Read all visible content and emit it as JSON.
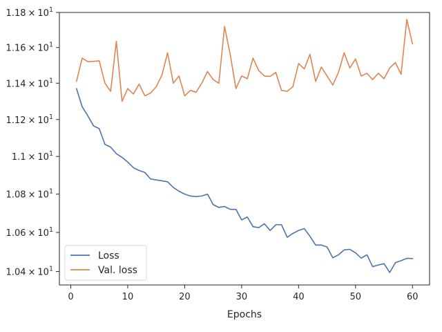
{
  "chart_data": {
    "type": "line",
    "title": "",
    "xlabel": "Epochs",
    "ylabel": "",
    "xlim": [
      -2,
      63
    ],
    "ylim": [
      10.332,
      11.8
    ],
    "x_ticks": [
      0,
      10,
      20,
      30,
      40,
      50,
      60
    ],
    "x_tick_labels": [
      "0",
      "10",
      "20",
      "30",
      "40",
      "50",
      "60"
    ],
    "y_ticks": [
      10.4,
      10.6,
      10.8,
      11.0,
      11.2,
      11.4,
      11.6,
      11.8
    ],
    "y_tick_labels": [
      {
        "mantissa": "1.04",
        "times": "×",
        "base": "10",
        "exp": "1"
      },
      {
        "mantissa": "1.06",
        "times": "×",
        "base": "10",
        "exp": "1"
      },
      {
        "mantissa": "1.08",
        "times": "×",
        "base": "10",
        "exp": "1"
      },
      {
        "mantissa": "1.1",
        "times": "×",
        "base": "10",
        "exp": "1"
      },
      {
        "mantissa": "1.12",
        "times": "×",
        "base": "10",
        "exp": "1"
      },
      {
        "mantissa": "1.14",
        "times": "×",
        "base": "10",
        "exp": "1"
      },
      {
        "mantissa": "1.16",
        "times": "×",
        "base": "10",
        "exp": "1"
      },
      {
        "mantissa": "1.18",
        "times": "×",
        "base": "10",
        "exp": "1"
      }
    ],
    "scale": "log",
    "grid": false,
    "legend_position": "lower-left",
    "x": [
      1,
      2,
      3,
      4,
      5,
      6,
      7,
      8,
      9,
      10,
      11,
      12,
      13,
      14,
      15,
      16,
      17,
      18,
      19,
      20,
      21,
      22,
      23,
      24,
      25,
      26,
      27,
      28,
      29,
      30,
      31,
      32,
      33,
      34,
      35,
      36,
      37,
      38,
      39,
      40,
      41,
      42,
      43,
      44,
      45,
      46,
      47,
      48,
      49,
      50,
      51,
      52,
      53,
      54,
      55,
      56,
      57,
      58,
      59,
      60
    ],
    "series": [
      {
        "name": "Loss",
        "color": "#4c72b0",
        "values": [
          11.37,
          11.27,
          11.22,
          11.165,
          11.15,
          11.065,
          11.05,
          11.015,
          10.995,
          10.97,
          10.94,
          10.925,
          10.915,
          10.88,
          10.875,
          10.87,
          10.865,
          10.835,
          10.815,
          10.8,
          10.79,
          10.787,
          10.79,
          10.8,
          10.745,
          10.73,
          10.735,
          10.72,
          10.72,
          10.665,
          10.68,
          10.63,
          10.625,
          10.645,
          10.61,
          10.64,
          10.64,
          10.575,
          10.595,
          10.61,
          10.62,
          10.58,
          10.535,
          10.535,
          10.525,
          10.47,
          10.485,
          10.51,
          10.513,
          10.495,
          10.468,
          10.485,
          10.425,
          10.433,
          10.44,
          10.395,
          10.445,
          10.455,
          10.467,
          10.466
        ]
      },
      {
        "name": "Val. loss",
        "color": "#dd8452",
        "values": [
          11.41,
          11.54,
          11.52,
          11.522,
          11.525,
          11.4,
          11.355,
          11.635,
          11.3,
          11.37,
          11.34,
          11.395,
          11.33,
          11.345,
          11.38,
          11.445,
          11.57,
          11.4,
          11.44,
          11.33,
          11.36,
          11.35,
          11.4,
          11.465,
          11.42,
          11.4,
          11.72,
          11.56,
          11.37,
          11.44,
          11.425,
          11.54,
          11.47,
          11.44,
          11.438,
          11.46,
          11.36,
          11.355,
          11.38,
          11.51,
          11.48,
          11.562,
          11.41,
          11.49,
          11.44,
          11.39,
          11.46,
          11.57,
          11.485,
          11.535,
          11.44,
          11.455,
          11.42,
          11.455,
          11.425,
          11.485,
          11.515,
          11.45,
          11.76,
          11.62
        ]
      }
    ]
  }
}
